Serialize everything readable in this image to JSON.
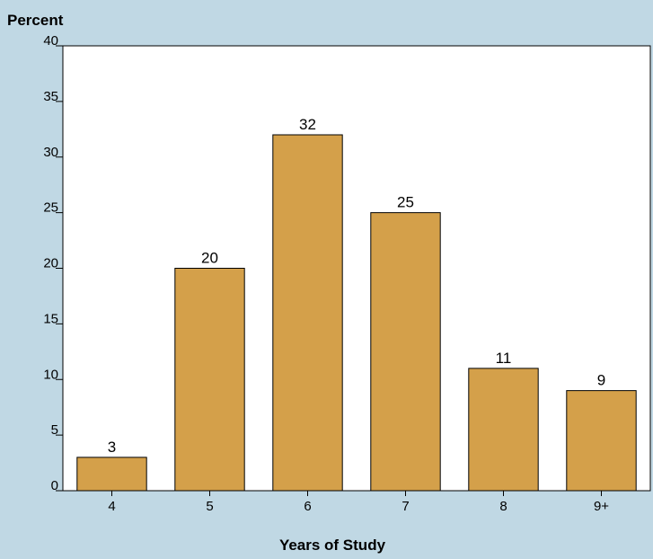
{
  "colors": {
    "background": "#c0d8e4",
    "plot_area": "#ffffff",
    "bar_fill": "#d4a04a",
    "bar_stroke": "#000000"
  },
  "chart_data": {
    "type": "bar",
    "categories": [
      "4",
      "5",
      "6",
      "7",
      "8",
      "9+"
    ],
    "values": [
      3,
      20,
      32,
      25,
      11,
      9
    ],
    "xlabel": "Years of Study",
    "ylabel": "Percent",
    "ylim": [
      0,
      40
    ],
    "yticks": [
      0,
      5,
      10,
      15,
      20,
      25,
      30,
      35,
      40
    ],
    "grid": false,
    "legend": "none",
    "data_labels": true
  }
}
